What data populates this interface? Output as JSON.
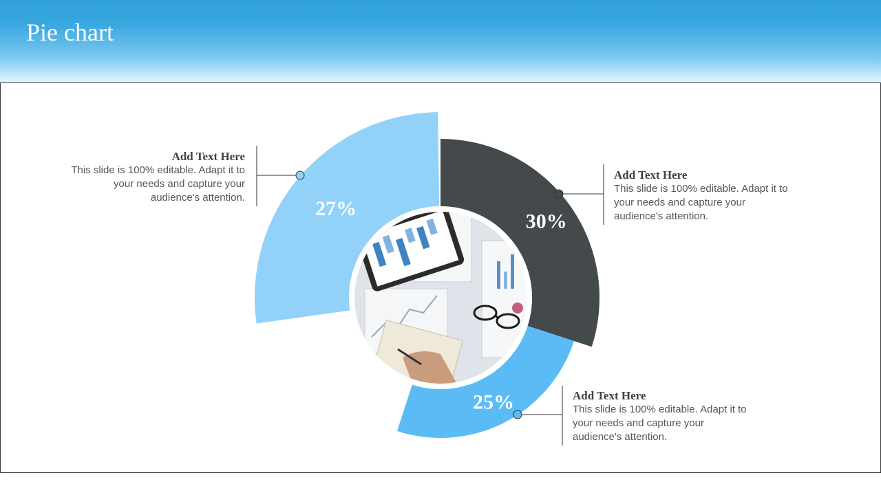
{
  "header": {
    "title": "Pie chart"
  },
  "chart_data": {
    "type": "pie",
    "title": "",
    "series": [
      {
        "values": [
          27,
          30,
          25
        ]
      }
    ],
    "data_labels": [
      "27%",
      "30%",
      "25%"
    ],
    "colors": [
      "#92d2f8",
      "#444a4b",
      "#5bbcf5"
    ]
  },
  "callouts": [
    {
      "heading": "Add Text Here",
      "body": "This slide is 100% editable. Adapt it to your needs and capture your audience's attention."
    },
    {
      "heading": "Add Text Here",
      "body": "This slide is 100% editable. Adapt it to your needs and capture your audience's attention."
    },
    {
      "heading": "Add Text Here",
      "body": "This slide is 100% editable. Adapt it to your needs and capture your audience's attention."
    }
  ],
  "center_image": {
    "icon": "business-desk-photo-icon"
  }
}
